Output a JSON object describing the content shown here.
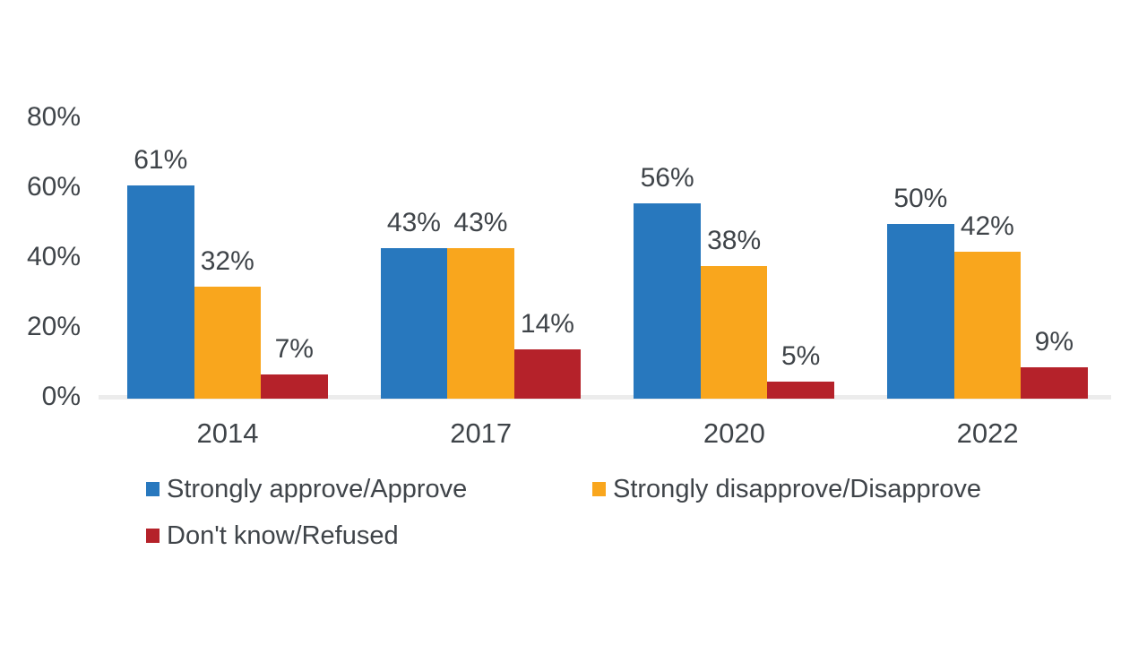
{
  "chart_data": {
    "type": "bar",
    "categories": [
      "2014",
      "2017",
      "2020",
      "2022"
    ],
    "series": [
      {
        "name": "Strongly approve/Approve",
        "color": "#2878BE",
        "values": [
          61,
          43,
          56,
          50
        ]
      },
      {
        "name": "Strongly disapprove/Disapprove",
        "color": "#F9A61D",
        "values": [
          32,
          43,
          38,
          42
        ]
      },
      {
        "name": "Don't know/Refused",
        "color": "#B5222A",
        "values": [
          7,
          14,
          5,
          9
        ]
      }
    ],
    "data_labels": [
      "61%",
      "32%",
      "7%",
      "43%",
      "43%",
      "14%",
      "56%",
      "38%",
      "5%",
      "50%",
      "42%",
      "9%"
    ],
    "title": "",
    "xlabel": "",
    "ylabel": "",
    "ylim": [
      0,
      80
    ],
    "yticks": [
      0,
      20,
      40,
      60,
      80
    ],
    "ytick_labels": [
      "0%",
      "20%",
      "40%",
      "60%",
      "80%"
    ],
    "grid": false,
    "legend_position": "bottom",
    "legend_rows": [
      [
        0,
        1
      ],
      [
        2
      ]
    ]
  },
  "styles": {
    "text_color": "#3F4449",
    "axis_line_color": "#ECECEC",
    "background": "#FFFFFF"
  }
}
